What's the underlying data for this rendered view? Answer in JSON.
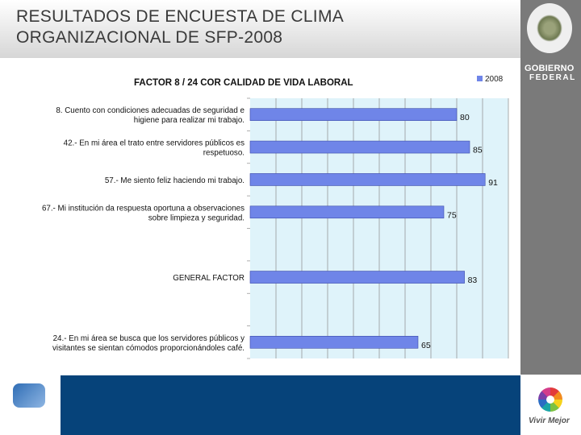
{
  "header": {
    "title_line1": "RESULTADOS DE ENCUESTA DE CLIMA",
    "title_line2": "ORGANIZACIONAL DE SFP-2008"
  },
  "branding": {
    "gobierno": "GOBIERNO",
    "federal": "FEDERAL",
    "vivir_mejor": "Vivir Mejor"
  },
  "chart_data": {
    "type": "bar",
    "orientation": "horizontal",
    "title": "FACTOR  8  /  24    COR CALIDAD DE VIDA LABORAL",
    "series": [
      {
        "name": "2008",
        "values": [
          80,
          85,
          91,
          75,
          83,
          65
        ]
      }
    ],
    "categories": [
      [
        "8.   Cuento con condiciones adecuadas de seguridad e",
        "higiene para realizar mi trabajo."
      ],
      [
        "42.-  En mi área el trato entre servidores públicos es",
        "respetuoso."
      ],
      [
        "57.-  Me siento feliz haciendo mi trabajo."
      ],
      [
        "67.-  Mi institución da respuesta oportuna a observaciones",
        "sobre limpieza y seguridad."
      ],
      [
        "GENERAL FACTOR"
      ],
      [
        "24.-  En mi área se busca que los servidores públicos y",
        "visitantes se sientan cómodos proporcionándoles café."
      ]
    ],
    "xlim": [
      0,
      100
    ],
    "grid": true,
    "legend": "top-right",
    "colors": {
      "bar": "#6f85e8",
      "plot_bg": "#dff3fa",
      "grid": "#8a8a8a"
    }
  }
}
